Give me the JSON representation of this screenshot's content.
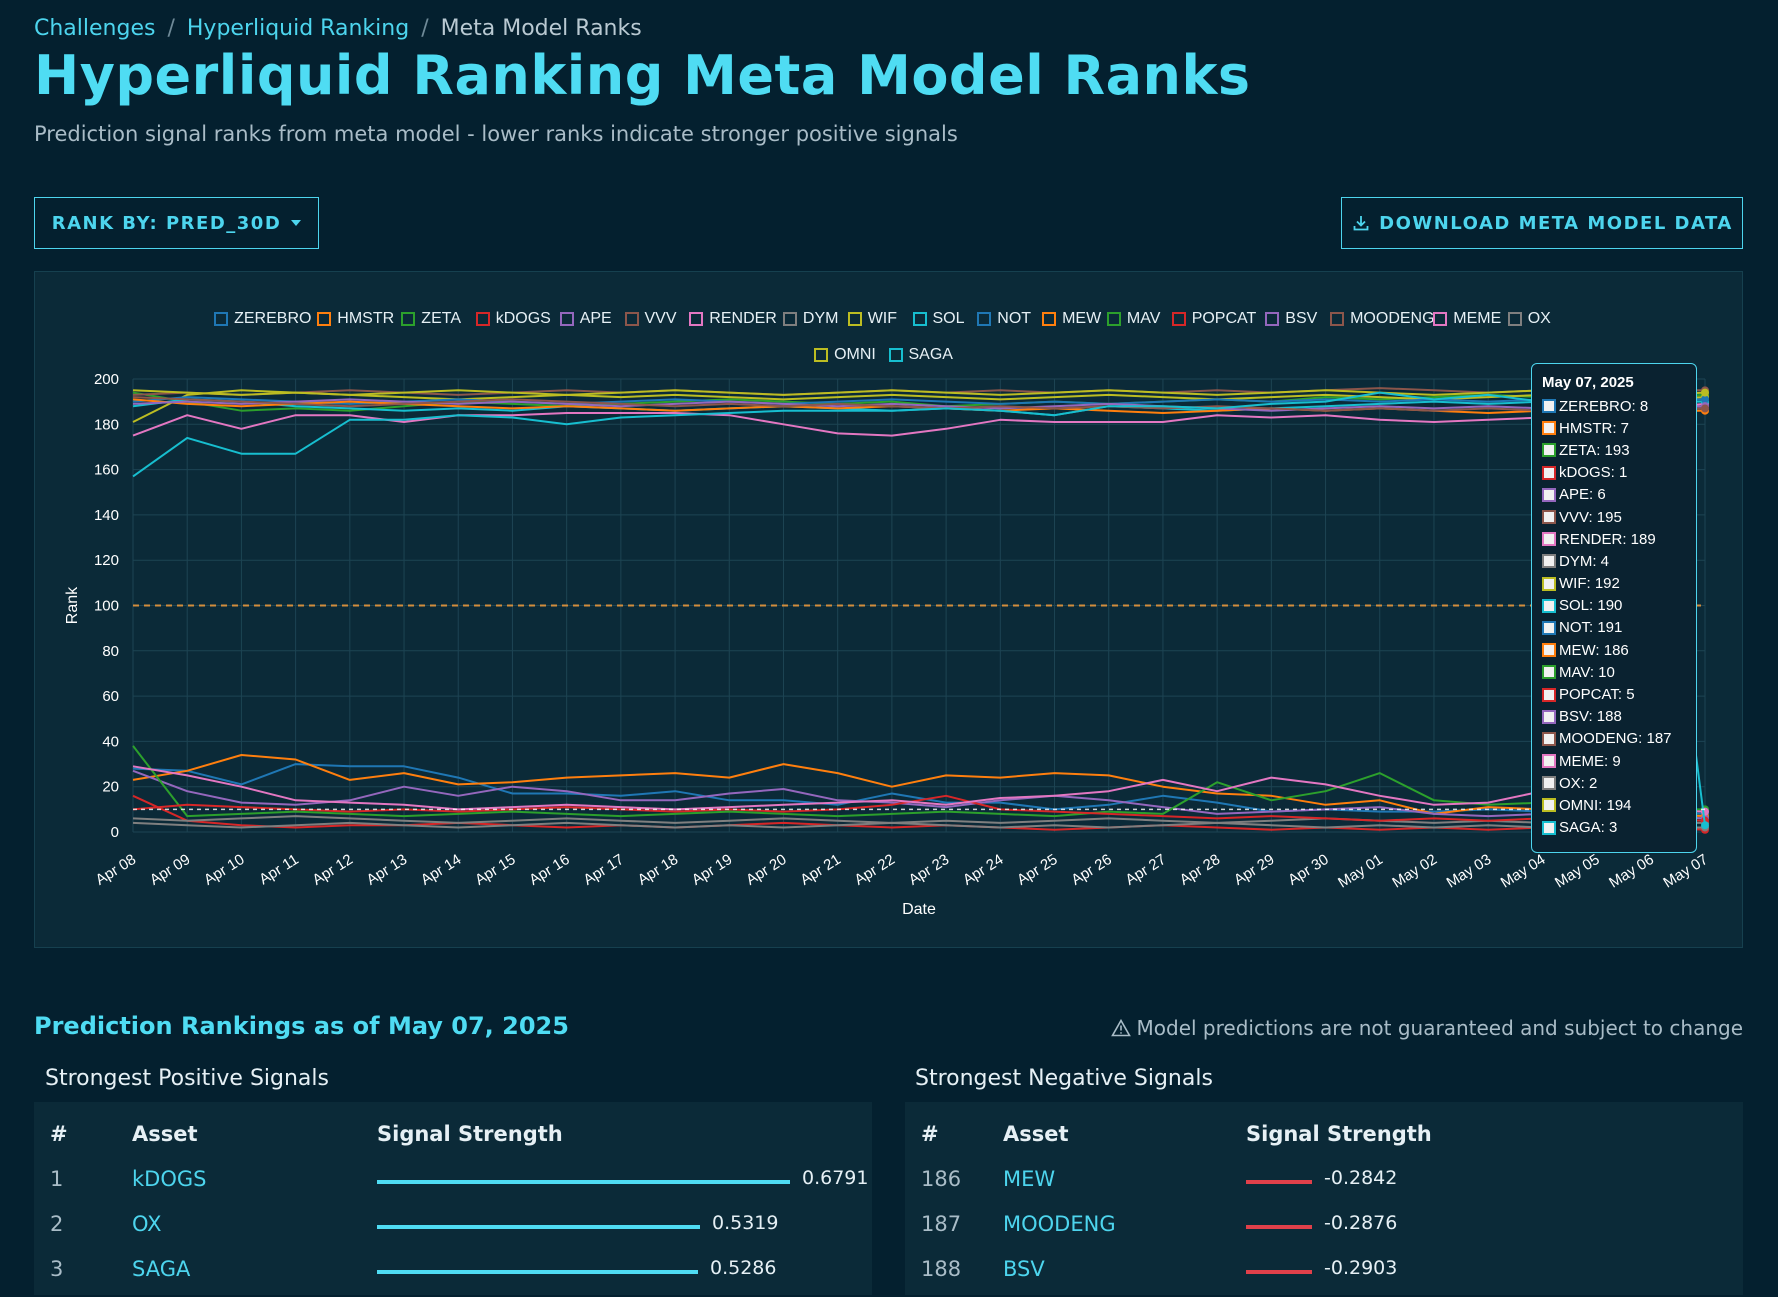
{
  "breadcrumb": {
    "items": [
      "Challenges",
      "Hyperliquid Ranking"
    ],
    "current": "Meta Model Ranks",
    "sep": "/"
  },
  "page": {
    "title": "Hyperliquid Ranking Meta Model Ranks",
    "subtitle": "Prediction signal ranks from meta model - lower ranks indicate stronger positive signals"
  },
  "toolbar": {
    "rank_by_label": "RANK BY: PRED_30D",
    "download_label": "DOWNLOAD META MODEL DATA"
  },
  "chart_data": {
    "type": "line",
    "xlabel": "Date",
    "ylabel": "Rank",
    "ylim": [
      0,
      200
    ],
    "yticks": [
      0,
      20,
      40,
      60,
      80,
      100,
      120,
      140,
      160,
      180,
      200
    ],
    "reference_line": 100,
    "legend_position": "top",
    "grid": true,
    "x": [
      "Apr 08",
      "Apr 09",
      "Apr 10",
      "Apr 11",
      "Apr 12",
      "Apr 13",
      "Apr 14",
      "Apr 15",
      "Apr 16",
      "Apr 17",
      "Apr 18",
      "Apr 19",
      "Apr 20",
      "Apr 21",
      "Apr 22",
      "Apr 23",
      "Apr 24",
      "Apr 25",
      "Apr 26",
      "Apr 27",
      "Apr 28",
      "Apr 29",
      "Apr 30",
      "May 01",
      "May 02",
      "May 03",
      "May 04",
      "May 05",
      "May 06",
      "May 07"
    ],
    "series": [
      {
        "name": "ZEREBRO",
        "color": "#1f77b4",
        "values": [
          28,
          27,
          21,
          30,
          29,
          29,
          24,
          17,
          17,
          16,
          18,
          14,
          14,
          12,
          17,
          13,
          13,
          10,
          12,
          16,
          13,
          9,
          10,
          9,
          9,
          10,
          9,
          8,
          9,
          8
        ]
      },
      {
        "name": "HMSTR",
        "color": "#ff7f0e",
        "values": [
          23,
          27,
          34,
          32,
          23,
          26,
          21,
          22,
          24,
          25,
          26,
          24,
          30,
          26,
          20,
          25,
          24,
          26,
          25,
          20,
          17,
          16,
          12,
          14,
          8,
          11,
          10,
          8,
          8,
          7
        ]
      },
      {
        "name": "ZETA",
        "color": "#2ca02c",
        "values": [
          194,
          190,
          186,
          187,
          186,
          188,
          190,
          189,
          188,
          189,
          190,
          191,
          190,
          189,
          190,
          188,
          189,
          190,
          189,
          190,
          191,
          190,
          192,
          191,
          192,
          193,
          192,
          193,
          192,
          193
        ]
      },
      {
        "name": "kDOGS",
        "color": "#d62728",
        "values": [
          16,
          5,
          3,
          2,
          3,
          3,
          4,
          3,
          2,
          3,
          2,
          3,
          4,
          3,
          2,
          3,
          2,
          1,
          2,
          3,
          2,
          1,
          2,
          1,
          2,
          1,
          2,
          1,
          2,
          1
        ]
      },
      {
        "name": "APE",
        "color": "#9467bd",
        "values": [
          27,
          18,
          13,
          12,
          14,
          20,
          16,
          20,
          18,
          14,
          14,
          17,
          19,
          14,
          13,
          11,
          14,
          16,
          14,
          11,
          8,
          9,
          10,
          11,
          8,
          7,
          8,
          6,
          7,
          6
        ]
      },
      {
        "name": "VVV",
        "color": "#8c564b",
        "values": [
          193,
          194,
          193,
          194,
          195,
          194,
          193,
          194,
          195,
          194,
          195,
          194,
          193,
          194,
          195,
          194,
          195,
          194,
          195,
          194,
          195,
          194,
          195,
          196,
          195,
          194,
          195,
          194,
          195,
          195
        ]
      },
      {
        "name": "RENDER",
        "color": "#e377c2",
        "values": [
          175,
          184,
          178,
          184,
          184,
          181,
          184,
          184,
          185,
          185,
          185,
          184,
          180,
          176,
          175,
          178,
          182,
          181,
          181,
          181,
          184,
          183,
          184,
          182,
          181,
          182,
          183,
          186,
          187,
          189
        ]
      },
      {
        "name": "DYM",
        "color": "#7f7f7f",
        "values": [
          6,
          5,
          6,
          7,
          6,
          5,
          4,
          5,
          6,
          5,
          4,
          5,
          6,
          5,
          4,
          5,
          4,
          5,
          6,
          5,
          4,
          5,
          6,
          5,
          4,
          5,
          4,
          5,
          4,
          4
        ]
      },
      {
        "name": "WIF",
        "color": "#bcbd22",
        "values": [
          181,
          193,
          195,
          194,
          193,
          192,
          191,
          192,
          193,
          192,
          193,
          192,
          191,
          192,
          193,
          192,
          191,
          192,
          193,
          192,
          191,
          192,
          193,
          192,
          191,
          192,
          193,
          192,
          191,
          192
        ]
      },
      {
        "name": "SOL",
        "color": "#17becf",
        "values": [
          188,
          191,
          190,
          188,
          187,
          186,
          187,
          186,
          188,
          187,
          186,
          187,
          188,
          187,
          186,
          187,
          186,
          184,
          188,
          187,
          186,
          187,
          188,
          189,
          190,
          189,
          190,
          191,
          190,
          190
        ]
      },
      {
        "name": "NOT",
        "color": "#1f77b4",
        "values": [
          190,
          192,
          191,
          190,
          189,
          190,
          191,
          190,
          189,
          190,
          191,
          190,
          189,
          190,
          191,
          190,
          189,
          190,
          189,
          190,
          191,
          190,
          191,
          190,
          191,
          190,
          191,
          190,
          191,
          191
        ]
      },
      {
        "name": "MEW",
        "color": "#ff7f0e",
        "values": [
          191,
          189,
          188,
          189,
          190,
          189,
          188,
          187,
          188,
          187,
          186,
          187,
          188,
          187,
          188,
          187,
          186,
          187,
          186,
          185,
          186,
          187,
          186,
          187,
          186,
          185,
          186,
          187,
          186,
          186
        ]
      },
      {
        "name": "MAV",
        "color": "#2ca02c",
        "values": [
          38,
          7,
          8,
          9,
          8,
          7,
          8,
          9,
          8,
          7,
          8,
          9,
          8,
          7,
          8,
          9,
          8,
          7,
          9,
          8,
          22,
          14,
          18,
          26,
          14,
          12,
          13,
          11,
          10,
          10
        ]
      },
      {
        "name": "POPCAT",
        "color": "#d62728",
        "values": [
          10,
          12,
          11,
          10,
          9,
          10,
          9,
          10,
          11,
          10,
          9,
          10,
          9,
          10,
          12,
          16,
          10,
          9,
          8,
          7,
          6,
          7,
          6,
          5,
          6,
          5,
          6,
          5,
          6,
          5
        ]
      },
      {
        "name": "BSV",
        "color": "#9467bd",
        "values": [
          189,
          190,
          189,
          190,
          191,
          190,
          189,
          190,
          189,
          188,
          189,
          190,
          189,
          188,
          189,
          188,
          187,
          188,
          189,
          188,
          187,
          186,
          187,
          188,
          187,
          188,
          187,
          188,
          187,
          188
        ]
      },
      {
        "name": "MOODENG",
        "color": "#8c564b",
        "values": [
          192,
          191,
          190,
          189,
          188,
          189,
          190,
          191,
          190,
          189,
          188,
          189,
          188,
          189,
          188,
          187,
          188,
          187,
          188,
          187,
          188,
          187,
          186,
          187,
          186,
          187,
          186,
          187,
          186,
          187
        ]
      },
      {
        "name": "MEME",
        "color": "#e377c2",
        "values": [
          29,
          25,
          20,
          14,
          13,
          12,
          10,
          11,
          12,
          11,
          10,
          11,
          12,
          13,
          14,
          12,
          15,
          16,
          18,
          23,
          18,
          24,
          21,
          16,
          12,
          13,
          18,
          12,
          10,
          9
        ]
      },
      {
        "name": "OX",
        "color": "#7f7f7f",
        "values": [
          4,
          3,
          2,
          3,
          4,
          3,
          2,
          3,
          4,
          3,
          2,
          3,
          2,
          3,
          4,
          3,
          2,
          3,
          2,
          3,
          4,
          3,
          2,
          3,
          2,
          3,
          2,
          3,
          2,
          2
        ]
      },
      {
        "name": "OMNI",
        "color": "#bcbd22",
        "values": [
          195,
          194,
          193,
          194,
          193,
          194,
          195,
          194,
          193,
          194,
          195,
          194,
          193,
          194,
          195,
          194,
          193,
          194,
          195,
          194,
          193,
          194,
          195,
          194,
          193,
          194,
          195,
          194,
          193,
          194
        ]
      },
      {
        "name": "SAGA",
        "color": "#17becf",
        "values": [
          157,
          174,
          167,
          167,
          182,
          182,
          184,
          183,
          180,
          183,
          184,
          185,
          186,
          186,
          186,
          187,
          186,
          184,
          188,
          188,
          187,
          189,
          190,
          194,
          191,
          193,
          190,
          190,
          189,
          3
        ]
      }
    ],
    "tooltip": {
      "title": "May 07, 2025"
    }
  },
  "rankings": {
    "title": "Prediction Rankings as of May 07, 2025",
    "disclaimer": "Model predictions are not guaranteed and subject to change",
    "positive": {
      "title": "Strongest Positive Signals",
      "headers": [
        "#",
        "Asset",
        "Signal Strength"
      ],
      "rows": [
        {
          "rank": "1",
          "asset": "kDOGS",
          "value": "0.6791",
          "strength": 0.6791
        },
        {
          "rank": "2",
          "asset": "OX",
          "value": "0.5319",
          "strength": 0.5319
        },
        {
          "rank": "3",
          "asset": "SAGA",
          "value": "0.5286",
          "strength": 0.5286
        }
      ]
    },
    "negative": {
      "title": "Strongest Negative Signals",
      "headers": [
        "#",
        "Asset",
        "Signal Strength"
      ],
      "rows": [
        {
          "rank": "186",
          "asset": "MEW",
          "value": "-0.2842",
          "strength": -0.2842
        },
        {
          "rank": "187",
          "asset": "MOODENG",
          "value": "-0.2876",
          "strength": -0.2876
        },
        {
          "rank": "188",
          "asset": "BSV",
          "value": "-0.2903",
          "strength": -0.2903
        }
      ]
    }
  }
}
